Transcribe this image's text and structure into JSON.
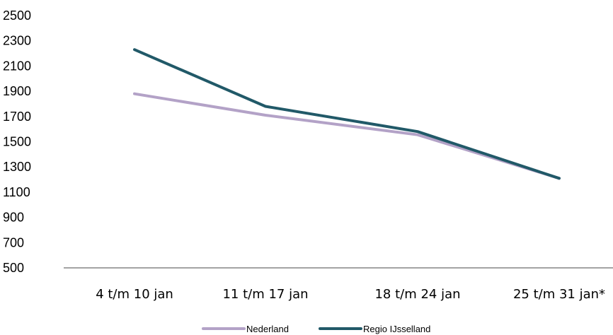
{
  "chart_data": {
    "type": "line",
    "categories": [
      "4 t/m 10 jan",
      "11 t/m 17 jan",
      "18 t/m 24 jan",
      "25 t/m 31 jan*"
    ],
    "series": [
      {
        "name": "Nederland",
        "values": [
          1880,
          1710,
          1555,
          1210
        ],
        "color": "#B3A2C7"
      },
      {
        "name": "Regio IJsselland",
        "values": [
          2230,
          1780,
          1580,
          1210
        ],
        "color": "#215968"
      }
    ],
    "yticks": [
      500,
      700,
      900,
      1100,
      1300,
      1500,
      1700,
      1900,
      2100,
      2300,
      2500
    ],
    "ylim": [
      500,
      2500
    ],
    "xlabel": "",
    "ylabel": "",
    "grid": false,
    "legend": "bottom-center"
  }
}
